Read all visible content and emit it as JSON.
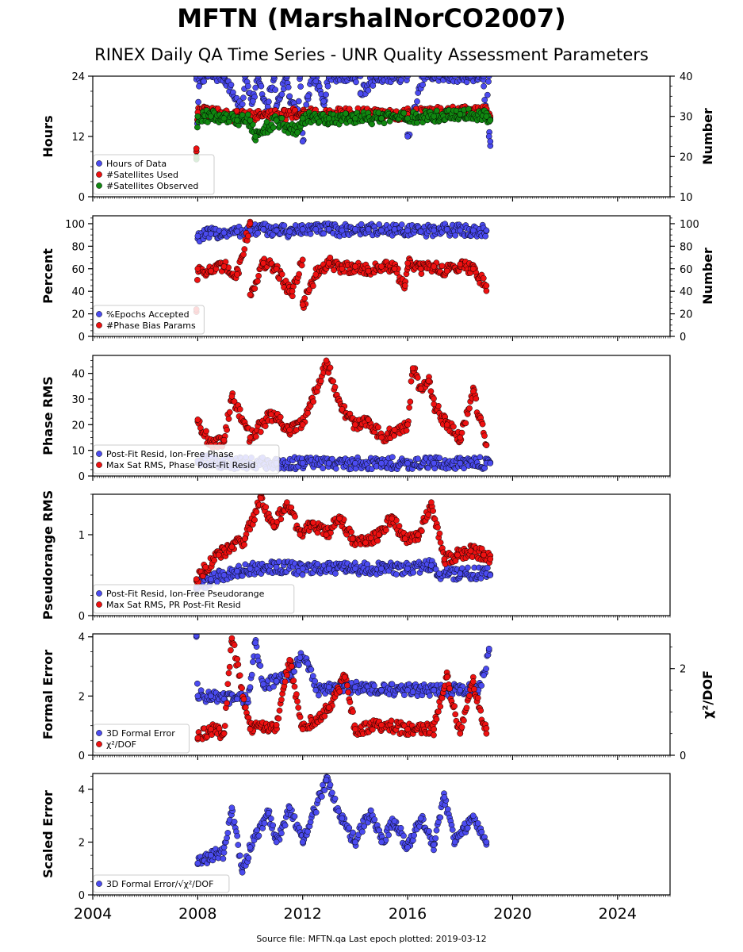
{
  "header": {
    "title": "MFTN (MarshalNorCO2007)",
    "subtitle": "RINEX Daily QA Time Series - UNR Quality Assessment Parameters"
  },
  "footer": {
    "text": "Source file: MFTN.qa Last epoch plotted: 2019-03-12"
  },
  "colors": {
    "blue": "#4b4bf0",
    "red": "#ee1111",
    "green": "#118811"
  },
  "chart_data": [
    {
      "type": "scatter",
      "id": "hours",
      "xlim": [
        2004,
        2026
      ],
      "x_ticks": [
        "2004",
        "2008",
        "2012",
        "2016",
        "2020",
        "2024"
      ],
      "ylabel": "Hours",
      "ylim": [
        0,
        24
      ],
      "y_ticks": [
        "0",
        "12",
        "24"
      ],
      "ylabel_right": "Number",
      "ylim_right": [
        10,
        40
      ],
      "y_ticks_right": [
        "10",
        "20",
        "30",
        "40"
      ],
      "legend_position": "lower-left",
      "legend": [
        "Hours of Data",
        "#Satellites Used",
        "#Satellites Observed"
      ],
      "series": [
        {
          "name": "Hours of Data",
          "color": "blue",
          "axis": "left",
          "x": [
            2007.95,
            2008.1,
            2008.4,
            2009.0,
            2009.8,
            2010.3,
            2010.9,
            2011.4,
            2011.9,
            2012.4,
            2013.0,
            2013.6,
            2014.2,
            2014.8,
            2015.4,
            2016.0,
            2016.6,
            2017.2,
            2017.8,
            2018.4,
            2018.9,
            2019.1,
            2007.95,
            2008.0,
            2008.05,
            2009.7,
            2010.1,
            2010.6,
            2011.0,
            2011.5,
            2011.8,
            2012.0,
            2012.2,
            2012.5,
            2012.8,
            2014.2,
            2016.0,
            2018.9,
            2019.0,
            2019.1,
            2019.15
          ],
          "y": [
            24,
            24,
            24,
            24,
            24,
            24,
            24,
            24,
            24,
            24,
            24,
            24,
            24,
            24,
            24,
            24,
            24,
            24,
            24,
            24,
            24,
            24,
            7.5,
            16,
            22,
            17,
            19,
            17,
            18,
            20,
            16,
            11,
            20,
            23,
            19,
            20.5,
            12,
            22,
            16,
            12,
            11
          ]
        },
        {
          "name": "#Satellites Used",
          "color": "red",
          "axis": "right",
          "x": [
            2007.95,
            2008.0,
            2008.3,
            2009.0,
            2010.0,
            2011.0,
            2012.0,
            2013.0,
            2014.0,
            2015.0,
            2016.0,
            2017.0,
            2018.0,
            2019.0,
            2019.15
          ],
          "y": [
            22,
            31,
            31.5,
            30,
            30,
            30.5,
            30.5,
            30.5,
            30.5,
            30.5,
            30.5,
            31,
            31,
            31,
            30
          ]
        },
        {
          "name": "#Satellites Observed",
          "color": "green",
          "axis": "right",
          "x": [
            2007.95,
            2008.0,
            2008.5,
            2009.0,
            2009.5,
            2010.0,
            2010.2,
            2011.0,
            2011.8,
            2012.0,
            2013.0,
            2014.0,
            2015.0,
            2016.0,
            2017.0,
            2018.0,
            2019.0,
            2019.15
          ],
          "y": [
            20,
            30,
            30,
            29.5,
            29,
            29,
            25,
            29,
            26,
            29.5,
            29.5,
            29.5,
            29.5,
            29.5,
            30,
            30.5,
            30,
            29
          ]
        }
      ]
    },
    {
      "type": "scatter",
      "id": "percent",
      "xlim": [
        2004,
        2026
      ],
      "x_ticks": [
        "2004",
        "2008",
        "2012",
        "2016",
        "2020",
        "2024"
      ],
      "ylabel": "Percent",
      "ylim": [
        0,
        107
      ],
      "y_ticks": [
        "0",
        "20",
        "40",
        "60",
        "80",
        "100"
      ],
      "ylabel_right": "Number",
      "ylim_right": [
        0,
        107
      ],
      "y_ticks_right": [
        "0",
        "20",
        "40",
        "60",
        "80",
        "100"
      ],
      "legend_position": "lower-left",
      "legend": [
        "%Epochs Accepted",
        "#Phase Bias Params"
      ],
      "series": [
        {
          "name": "%Epochs Accepted",
          "color": "blue",
          "axis": "left",
          "x": [
            2008.0,
            2008.5,
            2009.0,
            2009.5,
            2010.0,
            2010.5,
            2011.0,
            2011.5,
            2012.0,
            2012.5,
            2013.0,
            2013.5,
            2014.0,
            2014.5,
            2015.0,
            2015.5,
            2016.0,
            2016.5,
            2017.0,
            2017.5,
            2018.0,
            2018.5,
            2019.0
          ],
          "y": [
            89,
            91,
            92,
            93,
            94,
            95,
            94,
            93,
            95,
            95,
            95,
            94,
            95,
            95,
            94,
            95,
            94,
            93,
            94,
            95,
            94,
            94,
            94
          ]
        },
        {
          "name": "#Phase Bias Params",
          "color": "red",
          "axis": "right",
          "x": [
            2007.95,
            2008.0,
            2008.5,
            2009.0,
            2009.5,
            2010.0,
            2010.5,
            2011.0,
            2011.5,
            2012.0,
            2012.5,
            2013.0,
            2013.5,
            2014.0,
            2014.5,
            2015.0,
            2015.5,
            2016.0,
            2016.5,
            2017.0,
            2017.5,
            2018.0,
            2018.5,
            2019.0,
            2010.0,
            2011.6,
            2012.0,
            2015.9
          ],
          "y": [
            24,
            60,
            58,
            62,
            55,
            100,
            65,
            60,
            40,
            68,
            55,
            65,
            60,
            62,
            58,
            62,
            60,
            65,
            60,
            62,
            58,
            64,
            60,
            45,
            37,
            40,
            28,
            45
          ]
        }
      ]
    },
    {
      "type": "scatter",
      "id": "phase-rms",
      "xlim": [
        2004,
        2026
      ],
      "x_ticks": [
        "2004",
        "2008",
        "2012",
        "2016",
        "2020",
        "2024"
      ],
      "ylabel": "Phase RMS",
      "ylim": [
        0,
        47
      ],
      "y_ticks": [
        "0",
        "10",
        "20",
        "30",
        "40"
      ],
      "legend_position": "lower-left",
      "legend": [
        "Post-Fit Resid, Ion-Free Phase",
        "Max Sat RMS, Phase Post-Fit Resid"
      ],
      "series": [
        {
          "name": "Post-Fit Resid, Ion-Free Phase",
          "color": "blue",
          "axis": "left",
          "x": [
            2008.0,
            2009.0,
            2010.0,
            2011.0,
            2012.0,
            2013.0,
            2014.0,
            2015.0,
            2016.0,
            2017.0,
            2018.0,
            2019.0,
            2019.15
          ],
          "y": [
            6,
            5,
            5,
            5,
            5,
            5,
            5,
            5,
            5,
            5,
            5,
            5,
            5
          ]
        },
        {
          "name": "Max Sat RMS, Phase Post-Fit Resid",
          "color": "red",
          "axis": "left",
          "x": [
            2008.0,
            2008.5,
            2009.0,
            2009.3,
            2010.0,
            2010.8,
            2011.5,
            2012.0,
            2012.9,
            2013.5,
            2014.0,
            2014.5,
            2015.0,
            2015.5,
            2016.0,
            2016.2,
            2016.5,
            2016.8,
            2017.0,
            2017.5,
            2018.0,
            2018.5,
            2019.0
          ],
          "y": [
            22,
            12,
            14,
            31,
            15,
            24,
            18,
            20,
            45,
            26,
            20,
            22,
            15,
            18,
            20,
            42,
            34,
            37,
            28,
            20,
            15,
            33,
            12
          ]
        }
      ]
    },
    {
      "type": "scatter",
      "id": "pseudorange-rms",
      "xlim": [
        2004,
        2026
      ],
      "x_ticks": [
        "2004",
        "2008",
        "2012",
        "2016",
        "2020",
        "2024"
      ],
      "ylabel": "Pseudorange RMS",
      "ylim": [
        0,
        1.5
      ],
      "y_ticks": [
        "0",
        "1"
      ],
      "legend_position": "lower-left",
      "legend": [
        "Post-Fit Resid, Ion-Free Pseudorange",
        "Max Sat RMS, PR Post-Fit Resid"
      ],
      "series": [
        {
          "name": "Post-Fit Resid, Ion-Free Pseudorange",
          "color": "blue",
          "axis": "left",
          "x": [
            2007.95,
            2008.5,
            2009.0,
            2009.5,
            2010.0,
            2011.0,
            2012.0,
            2013.0,
            2014.0,
            2015.0,
            2016.0,
            2016.9,
            2017.2,
            2018.0,
            2019.0,
            2019.15
          ],
          "y": [
            0.35,
            0.45,
            0.5,
            0.55,
            0.58,
            0.6,
            0.58,
            0.58,
            0.58,
            0.58,
            0.58,
            0.62,
            0.52,
            0.52,
            0.52,
            0.5
          ]
        },
        {
          "name": "Max Sat RMS, PR Post-Fit Resid",
          "color": "red",
          "axis": "left",
          "x": [
            2007.95,
            2008.3,
            2008.8,
            2009.3,
            2009.8,
            2010.4,
            2010.9,
            2011.4,
            2011.9,
            2012.4,
            2012.9,
            2013.4,
            2013.9,
            2014.4,
            2014.9,
            2015.4,
            2015.9,
            2016.4,
            2016.9,
            2017.4,
            2017.9,
            2018.4,
            2018.9,
            2019.15
          ],
          "y": [
            0.45,
            0.6,
            0.75,
            0.85,
            0.95,
            1.45,
            1.1,
            1.4,
            1.0,
            1.15,
            1.0,
            1.2,
            0.95,
            0.9,
            1.0,
            1.2,
            0.95,
            1.0,
            1.4,
            0.7,
            0.75,
            0.8,
            0.75,
            0.7
          ]
        }
      ]
    },
    {
      "type": "scatter",
      "id": "formal-error",
      "xlim": [
        2004,
        2026
      ],
      "x_ticks": [
        "2004",
        "2008",
        "2012",
        "2016",
        "2020",
        "2024"
      ],
      "ylabel": "Formal Error",
      "ylim": [
        0,
        4.1
      ],
      "y_ticks": [
        "0",
        "2",
        "4"
      ],
      "ylabel_right": "χ²/DOF",
      "ylim_right": [
        0,
        2.8
      ],
      "y_ticks_right": [
        "0",
        "2"
      ],
      "legend_position": "lower-left",
      "legend": [
        "3D Formal Error",
        "χ²/DOF"
      ],
      "series": [
        {
          "name": "3D Formal Error",
          "color": "blue",
          "axis": "left",
          "x": [
            2007.95,
            2008.0,
            2008.5,
            2009.0,
            2009.5,
            2009.9,
            2010.0,
            2010.2,
            2010.5,
            2011.0,
            2011.5,
            2011.9,
            2012.2,
            2012.5,
            2013.0,
            2014.0,
            2015.0,
            2016.0,
            2017.0,
            2018.0,
            2018.7,
            2018.9,
            2019.1
          ],
          "y": [
            4.05,
            2.0,
            2.0,
            1.9,
            1.9,
            1.9,
            2.3,
            3.8,
            2.4,
            2.5,
            2.7,
            3.3,
            3.1,
            2.2,
            2.3,
            2.3,
            2.2,
            2.2,
            2.2,
            2.2,
            2.2,
            2.7,
            3.6
          ]
        },
        {
          "name": "χ²/DOF",
          "color": "red",
          "axis": "right",
          "x": [
            2008.0,
            2008.5,
            2009.0,
            2009.3,
            2010.0,
            2011.0,
            2011.5,
            2012.0,
            2013.0,
            2013.6,
            2014.0,
            2015.0,
            2016.0,
            2017.0,
            2017.5,
            2018.0,
            2018.5,
            2019.0
          ],
          "y": [
            0.4,
            0.6,
            0.5,
            2.7,
            0.6,
            0.7,
            2.2,
            0.6,
            1.1,
            1.8,
            0.6,
            0.7,
            0.6,
            0.6,
            1.8,
            0.5,
            1.7,
            0.5
          ]
        }
      ]
    },
    {
      "type": "scatter",
      "id": "scaled-error",
      "xlim": [
        2004,
        2026
      ],
      "x_ticks": [
        "2004",
        "2008",
        "2012",
        "2016",
        "2020",
        "2024"
      ],
      "ylabel": "Scaled Error",
      "ylim": [
        0,
        4.6
      ],
      "y_ticks": [
        "0",
        "2",
        "4"
      ],
      "legend_position": "lower-left",
      "legend": [
        "3D Formal Error/√χ²/DOF"
      ],
      "series": [
        {
          "name": "3D Formal Error/√χ²/DOF",
          "color": "blue",
          "axis": "left",
          "x": [
            2008.0,
            2008.5,
            2009.0,
            2009.3,
            2009.7,
            2010.0,
            2010.7,
            2011.0,
            2011.5,
            2012.0,
            2012.9,
            2013.5,
            2014.0,
            2014.6,
            2015.0,
            2015.5,
            2016.0,
            2016.5,
            2017.0,
            2017.4,
            2017.8,
            2018.5,
            2019.0
          ],
          "y": [
            1.2,
            1.5,
            1.6,
            3.3,
            0.85,
            1.8,
            3.1,
            2.0,
            3.3,
            2.0,
            4.35,
            2.9,
            2.0,
            3.2,
            2.0,
            2.8,
            1.8,
            2.9,
            1.9,
            3.7,
            2.0,
            3.0,
            2.0
          ]
        }
      ]
    }
  ]
}
